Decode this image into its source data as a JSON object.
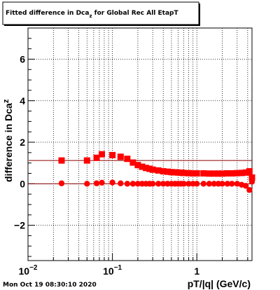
{
  "title": {
    "prefix": "Fitted difference in Dca",
    "subscript": "z",
    "suffix": " for Global Rec All EtapT"
  },
  "timestamp": "Mon Oct 19 08:30:10 2020",
  "chart_data": {
    "type": "scatter",
    "title": "Fitted difference in Dca_z for Global Rec All EtapT",
    "xlabel": "pT/|q| (GeV/c)",
    "ylabel": {
      "main": "difference in Dca",
      "subscript": "z"
    },
    "x_scale": "log",
    "xlim": [
      0.01,
      4.5
    ],
    "ylim": [
      -3.7,
      7.5
    ],
    "grid": true,
    "x_ticks": [
      {
        "value": 0.01,
        "base": "10",
        "exp": "-2"
      },
      {
        "value": 0.1,
        "base": "10",
        "exp": "-1"
      },
      {
        "value": 1,
        "label": "1"
      }
    ],
    "y_ticks": [
      -2,
      0,
      2,
      4,
      6
    ],
    "colors": {
      "marker": "#ff0000",
      "fit": "#8b0000",
      "overlap": "#000000"
    },
    "series": [
      {
        "marker": "square",
        "color": "#ff0000",
        "fit_value": 1.12,
        "x": [
          0.025,
          0.05,
          0.065,
          0.075,
          0.1,
          0.125,
          0.15,
          0.175,
          0.2,
          0.225,
          0.25,
          0.275,
          0.3,
          0.35,
          0.4,
          0.45,
          0.5,
          0.55,
          0.6,
          0.65,
          0.7,
          0.8,
          0.9,
          1.0,
          1.2,
          1.4,
          1.6,
          1.8,
          2.0,
          2.3,
          2.6,
          3.0,
          3.4,
          3.8,
          4.2,
          4.5
        ],
        "y": [
          1.12,
          1.12,
          1.25,
          1.42,
          1.38,
          1.3,
          1.2,
          1.02,
          0.9,
          0.82,
          0.76,
          0.72,
          0.68,
          0.64,
          0.6,
          0.58,
          0.56,
          0.55,
          0.54,
          0.53,
          0.52,
          0.51,
          0.5,
          0.5,
          0.5,
          0.49,
          0.49,
          0.49,
          0.49,
          0.5,
          0.5,
          0.51,
          0.52,
          0.54,
          0.6,
          0.3
        ]
      },
      {
        "marker": "circle",
        "color": "#ff0000",
        "fit_value": 0.0,
        "x": [
          0.025,
          0.05,
          0.065,
          0.075,
          0.1,
          0.125,
          0.15,
          0.175,
          0.2,
          0.225,
          0.25,
          0.275,
          0.3,
          0.35,
          0.4,
          0.45,
          0.5,
          0.55,
          0.6,
          0.65,
          0.7,
          0.8,
          0.9,
          1.0,
          1.2,
          1.4,
          1.6,
          1.8,
          2.0,
          2.3,
          2.6,
          3.0,
          3.4,
          3.8,
          4.2,
          4.5
        ],
        "y": [
          0.02,
          0.0,
          0.02,
          0.05,
          0.06,
          0.02,
          0.0,
          0.0,
          0.0,
          0.0,
          0.0,
          0.0,
          0.0,
          0.0,
          0.0,
          0.0,
          0.0,
          0.0,
          0.0,
          0.0,
          0.0,
          0.0,
          0.0,
          0.0,
          0.0,
          0.0,
          0.0,
          0.0,
          0.0,
          0.0,
          0.0,
          0.0,
          -0.05,
          -0.1,
          -0.3,
          0.1
        ]
      }
    ]
  }
}
